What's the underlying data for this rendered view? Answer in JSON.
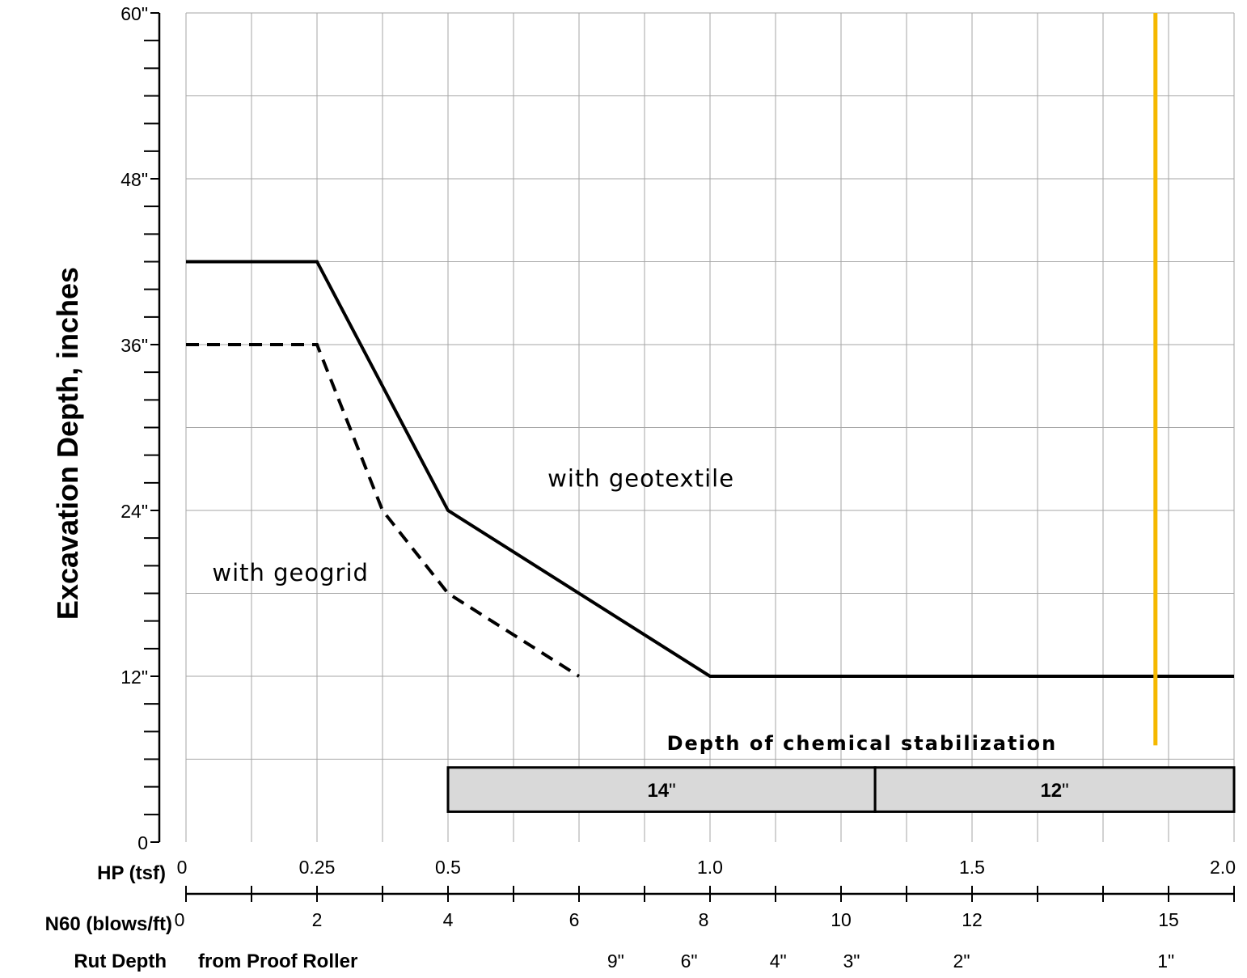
{
  "chart_data": {
    "type": "line",
    "ylabel": "Excavation Depth, inches",
    "ylim": [
      0,
      60
    ],
    "xlim": [
      0,
      2.0
    ],
    "y_ticks": [
      {
        "value": 0,
        "label": "0"
      },
      {
        "value": 12,
        "label": "12\""
      },
      {
        "value": 24,
        "label": "24\""
      },
      {
        "value": 36,
        "label": "36\""
      },
      {
        "value": 48,
        "label": "48\""
      },
      {
        "value": 60,
        "label": "60\""
      }
    ],
    "y_minor_step": 2,
    "grid": true,
    "x_axes": {
      "hp": {
        "label": "HP (tsf)",
        "ticks": [
          {
            "value": 0,
            "label": "0"
          },
          {
            "value": 0.25,
            "label": "0.25"
          },
          {
            "value": 0.5,
            "label": "0.5"
          },
          {
            "value": 1.0,
            "label": "1.0"
          },
          {
            "value": 1.5,
            "label": "1.5"
          },
          {
            "value": 2.0,
            "label": "2.0"
          }
        ]
      },
      "n60": {
        "label": "N60 (blows/ft)",
        "ticks": [
          {
            "hp": 0,
            "label": "0"
          },
          {
            "hp": 0.25,
            "label": "2"
          },
          {
            "hp": 0.5,
            "label": "4"
          },
          {
            "hp": 0.75,
            "label": "6"
          },
          {
            "hp": 1.0,
            "label": "8"
          },
          {
            "hp": 1.25,
            "label": "10"
          },
          {
            "hp": 1.5,
            "label": "12"
          },
          {
            "hp": 1.875,
            "label": "15"
          }
        ],
        "extra_tick_hp": [
          0.125,
          0.375,
          0.625,
          0.875,
          1.125,
          1.375,
          1.625,
          1.75,
          2.0
        ]
      },
      "rut": {
        "label": "Rut Depth",
        "sublabel": "from Proof Roller",
        "ticks": [
          {
            "hp": 0.82,
            "label": "9\""
          },
          {
            "hp": 0.96,
            "label": "6\""
          },
          {
            "hp": 1.13,
            "label": "4\""
          },
          {
            "hp": 1.27,
            "label": "3\""
          },
          {
            "hp": 1.48,
            "label": "2\""
          },
          {
            "hp": 1.87,
            "label": "1\""
          }
        ]
      }
    },
    "series": [
      {
        "style": "solid",
        "color": "#000000",
        "points": [
          [
            0,
            42
          ],
          [
            0.25,
            42
          ],
          [
            0.5,
            24
          ],
          [
            1.0,
            12
          ],
          [
            2.0,
            12
          ]
        ]
      },
      {
        "style": "dashed",
        "color": "#000000",
        "points": [
          [
            0,
            36
          ],
          [
            0.25,
            36
          ],
          [
            0.375,
            24
          ],
          [
            0.5,
            18
          ],
          [
            0.75,
            12
          ]
        ]
      },
      {
        "style": "solid",
        "color": "#f5b800",
        "points": [
          [
            1.85,
            60
          ],
          [
            1.85,
            7
          ]
        ]
      }
    ],
    "annotations": [
      {
        "text": "with geotextile",
        "x": 0.69,
        "y": 26.3
      },
      {
        "text": "with geogrid",
        "x": 0.05,
        "y": 19.5
      }
    ],
    "stabilization": {
      "title": "Depth of chemical stabilization",
      "title_y": 7.2,
      "y_range": [
        2.2,
        5.4
      ],
      "fill": "#d9d9d9",
      "segments": [
        {
          "x_from": 0.5,
          "x_to": 1.315,
          "bold": "14",
          "unit": "\""
        },
        {
          "x_from": 1.315,
          "x_to": 2.0,
          "bold": "12",
          "unit": "\""
        }
      ]
    }
  }
}
